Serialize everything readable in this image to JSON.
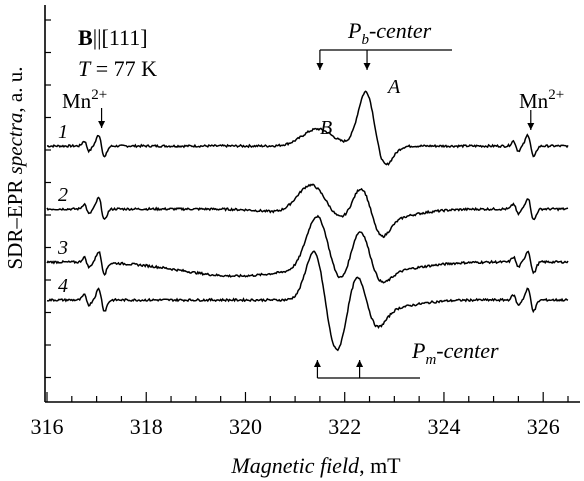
{
  "chart_data": {
    "type": "line",
    "xlabel_italic": "Magnetic field",
    "xlabel_unit": ", mT",
    "ylabel_main": "SDR–EPR ",
    "ylabel_italic": "spectra",
    "ylabel_unit": ", a. u.",
    "xlim": [
      316,
      326.5
    ],
    "x_ticks": [
      316,
      318,
      320,
      322,
      324,
      326
    ],
    "x_tick_labels": [
      "316",
      "318",
      "320",
      "322",
      "324",
      "326"
    ],
    "annotations": {
      "field_bold": "B",
      "field_rest": "||[111]",
      "temp_italic": "T",
      "temp_rest": " = 77 K",
      "mn_left": "Mn",
      "mn_right": "Mn",
      "mn_sup": "2+",
      "pb_label": "P",
      "pb_sub": "b",
      "pb_suffix": "-center",
      "pm_label": "P",
      "pm_sub": "m",
      "pm_suffix": "-center",
      "peak_a": "A",
      "peak_b": "B"
    },
    "series": [
      {
        "label": "1",
        "baseline": 0,
        "broad": [],
        "mn": 1.0,
        "peaks": [
          [
            321.45,
            0.3,
            17
          ],
          [
            322.45,
            0.17,
            60
          ],
          [
            322.75,
            0.18,
            -26
          ]
        ]
      },
      {
        "label": "2",
        "baseline": 1,
        "broad": [
          [
            322.1,
            0.85,
            -18
          ]
        ],
        "mn": 1.0,
        "peaks": [
          [
            321.35,
            0.3,
            36
          ],
          [
            322.35,
            0.2,
            40
          ],
          [
            322.7,
            0.18,
            -20
          ]
        ]
      },
      {
        "label": "3",
        "baseline": 2,
        "broad": [
          [
            319.8,
            1.1,
            -14
          ],
          [
            322.6,
            0.8,
            -10
          ]
        ],
        "mn": 1.0,
        "peaks": [
          [
            321.45,
            0.22,
            55
          ],
          [
            321.95,
            0.22,
            -20
          ],
          [
            322.3,
            0.2,
            48
          ],
          [
            322.7,
            0.2,
            -14
          ]
        ]
      },
      {
        "label": "4",
        "baseline": 3,
        "broad": [
          [
            322.8,
            0.6,
            -8
          ]
        ],
        "mn": 1.0,
        "peaks": [
          [
            321.4,
            0.18,
            52
          ],
          [
            321.85,
            0.2,
            -55
          ],
          [
            322.25,
            0.2,
            40
          ],
          [
            322.6,
            0.2,
            -25
          ]
        ]
      }
    ],
    "mn_lines": [
      317.1,
      325.75
    ],
    "pb_lines": [
      321.5,
      322.45
    ],
    "pm_lines": [
      321.45,
      322.3
    ]
  }
}
